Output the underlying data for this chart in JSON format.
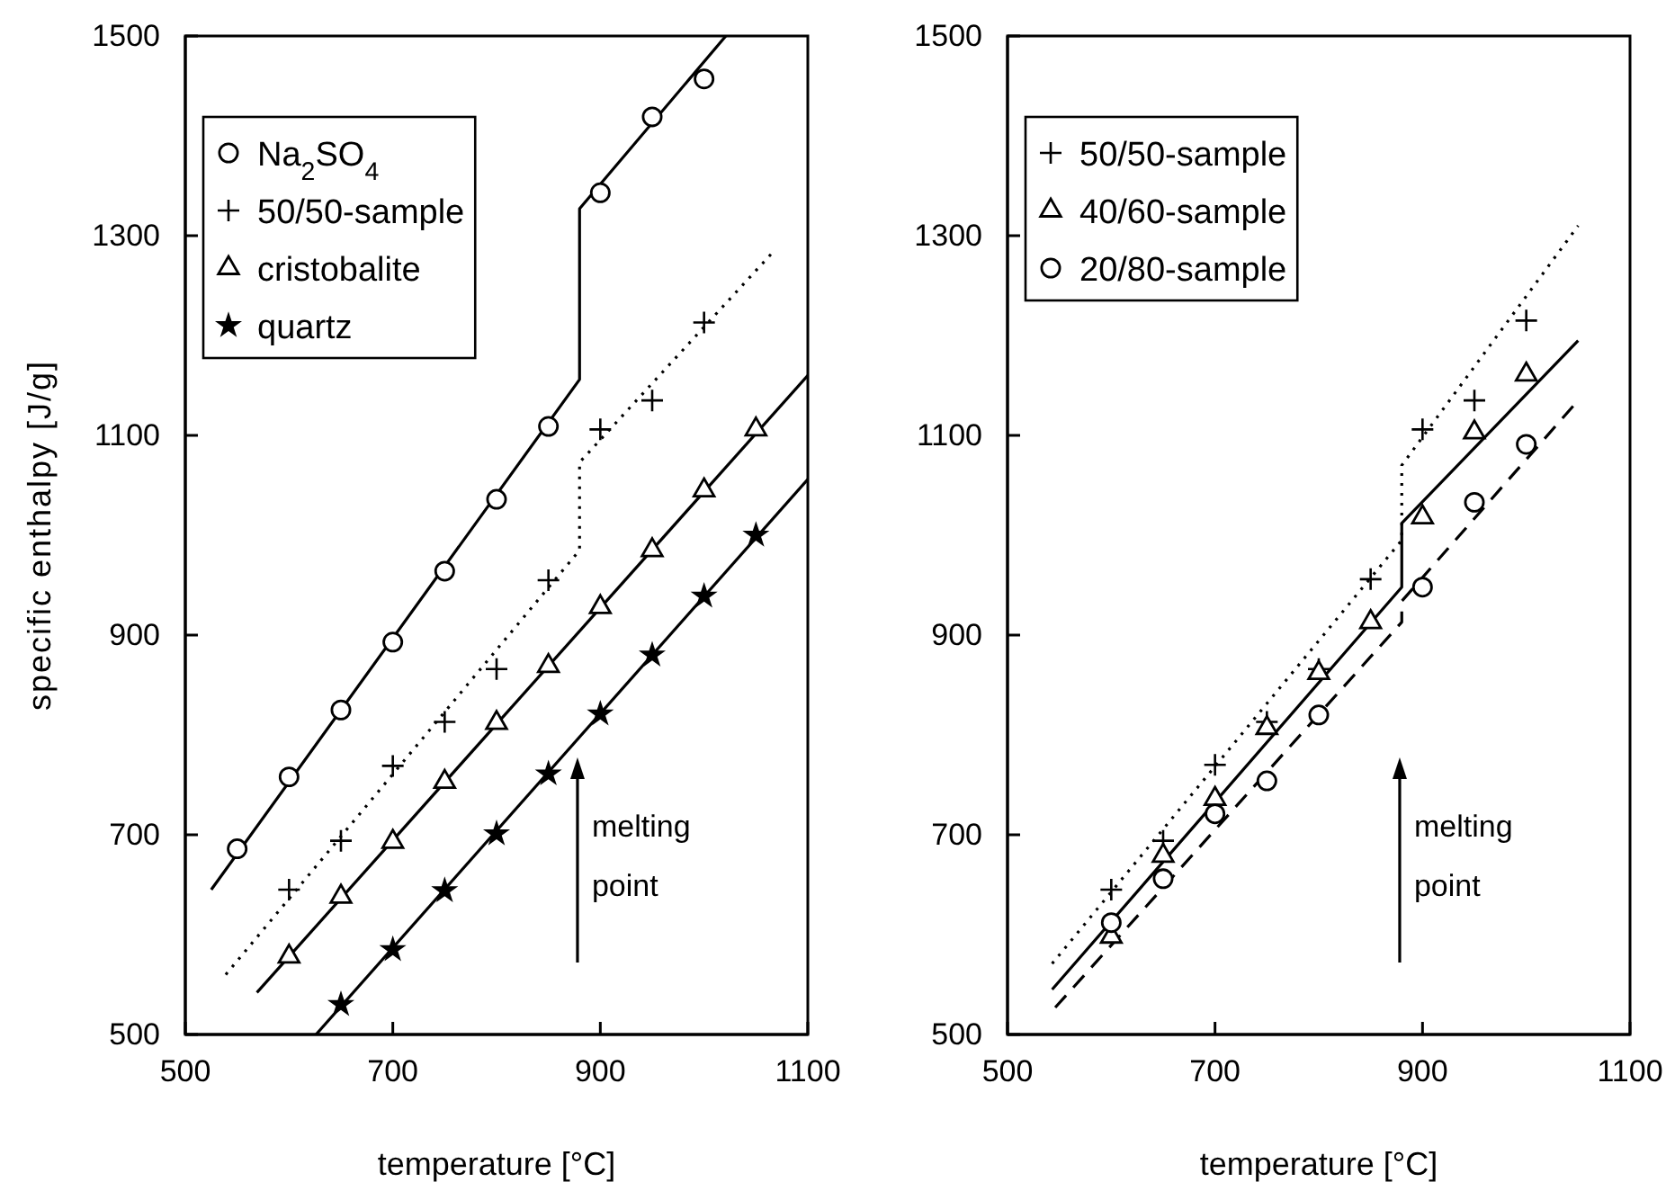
{
  "chart_data": [
    {
      "type": "scatter",
      "xlabel": "temperature [°C]",
      "ylabel": "specific enthalpy [J/g]",
      "xlim": [
        500,
        1100
      ],
      "ylim": [
        500,
        1500
      ],
      "xticks": [
        500,
        700,
        900,
        1100
      ],
      "yticks": [
        500,
        700,
        900,
        1100,
        1300,
        1500
      ],
      "legend": "top left",
      "grid": false,
      "annotations": [
        "melting point"
      ],
      "series": [
        {
          "name": "Na$_{2}$SO$_{4}$",
          "color": "#000000",
          "marker": "circle",
          "x": [
            550,
            600,
            650,
            700,
            750,
            800,
            850,
            900,
            950,
            1000
          ],
          "values": [
            686,
            758,
            825,
            893,
            964,
            1036,
            1109,
            1343,
            1419,
            1457
          ]
        },
        {
          "name": "50/50-sample",
          "color": "#000000",
          "marker": "cross",
          "x": [
            600,
            650,
            700,
            750,
            800,
            850,
            900,
            950,
            1000
          ],
          "values": [
            645,
            694,
            769,
            813,
            866,
            955,
            1106,
            1135,
            1213
          ]
        },
        {
          "name": "cristobalite",
          "color": "#000000",
          "marker": "triangle",
          "x": [
            600,
            650,
            700,
            750,
            800,
            850,
            900,
            950,
            1000,
            1050
          ],
          "values": [
            578,
            638,
            693,
            753,
            812,
            869,
            928,
            985,
            1045,
            1106
          ]
        },
        {
          "name": "quartz",
          "color": "#000000",
          "marker": "star",
          "x": [
            650,
            700,
            750,
            800,
            850,
            900,
            950,
            1000,
            1050
          ],
          "values": [
            530,
            585,
            644,
            701,
            761,
            821,
            880,
            939,
            1000
          ]
        },
        {
          "type": "line",
          "color": "#000000",
          "line_style": "solid",
          "marker": "none",
          "x": [
            525,
            880,
            880,
            1021
          ],
          "values": [
            645,
            1156,
            1327,
            1500
          ]
        },
        {
          "type": "line",
          "color": "#000000",
          "line_style": "dotted",
          "marker": "none",
          "x": [
            539,
            880,
            880,
            1065
          ],
          "values": [
            560,
            985,
            1073,
            1282
          ]
        },
        {
          "type": "line",
          "color": "#000000",
          "line_style": "solid",
          "marker": "none",
          "x": [
            569,
            1100
          ],
          "values": [
            542,
            1160
          ]
        },
        {
          "type": "line",
          "color": "#000000",
          "line_style": "solid",
          "marker": "none",
          "x": [
            626,
            1100
          ],
          "values": [
            500,
            1056
          ]
        }
      ]
    },
    {
      "type": "scatter",
      "xlabel": "temperature [°C]",
      "xlim": [
        500,
        1100
      ],
      "ylim": [
        500,
        1500
      ],
      "xticks": [
        500,
        700,
        900,
        1100
      ],
      "yticks": [
        500,
        700,
        900,
        1100,
        1300,
        1500
      ],
      "legend": "top left",
      "grid": false,
      "annotations": [
        "melting point"
      ],
      "series": [
        {
          "name": "50/50-sample",
          "color": "#000000",
          "marker": "cross",
          "x": [
            600,
            650,
            700,
            750,
            800,
            850,
            900,
            950,
            1000
          ],
          "values": [
            645,
            694,
            770,
            813,
            866,
            956,
            1106,
            1135,
            1215
          ]
        },
        {
          "name": "40/60-sample",
          "color": "#000000",
          "marker": "triangle",
          "x": [
            600,
            650,
            700,
            750,
            800,
            850,
            900,
            950,
            1000
          ],
          "values": [
            598,
            679,
            736,
            807,
            862,
            913,
            1018,
            1103,
            1161
          ]
        },
        {
          "name": "20/80-sample",
          "color": "#000000",
          "marker": "circle",
          "x": [
            600,
            650,
            700,
            750,
            800,
            900,
            950,
            1000
          ],
          "values": [
            612,
            656,
            721,
            754,
            820,
            948,
            1033,
            1091
          ]
        },
        {
          "type": "line",
          "color": "#000000",
          "line_style": "dotted",
          "marker": "none",
          "x": [
            543,
            880,
            880,
            1050
          ],
          "values": [
            571,
            995,
            1070,
            1310
          ]
        },
        {
          "type": "line",
          "color": "#000000",
          "line_style": "solid",
          "marker": "none",
          "x": [
            543,
            880,
            880,
            1050
          ],
          "values": [
            545,
            948,
            1012,
            1195
          ]
        },
        {
          "type": "line",
          "color": "#000000",
          "line_style": "dashed",
          "marker": "none",
          "x": [
            546,
            880,
            880,
            1050
          ],
          "values": [
            527,
            913,
            934,
            1135
          ]
        }
      ]
    }
  ]
}
